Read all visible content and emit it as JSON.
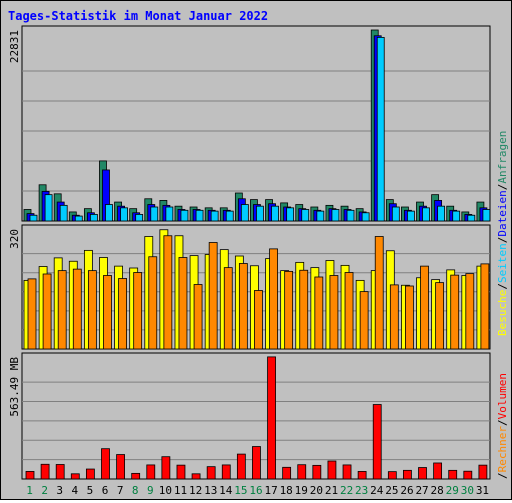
{
  "page_title": "Tages-Statistik im Monat Januar 2022",
  "colors": {
    "anfragen": "#228866",
    "dateien": "#0000ff",
    "seiten": "#00ccff",
    "besuche": "#ffff00",
    "rechner": "#ff8800",
    "volumen": "#ff0000",
    "weekday_label": "#000000",
    "weekend_label": "#008040"
  },
  "chart_data": [
    {
      "type": "bar",
      "panel": "top",
      "ytick_label": "22831",
      "ylim": [
        0,
        23200
      ],
      "grid": true,
      "categories": [
        "1",
        "2",
        "3",
        "4",
        "5",
        "6",
        "7",
        "8",
        "9",
        "10",
        "11",
        "12",
        "13",
        "14",
        "15",
        "16",
        "17",
        "18",
        "19",
        "20",
        "21",
        "22",
        "23",
        "24",
        "25",
        "26",
        "27",
        "28",
        "29",
        "30",
        "31"
      ],
      "weekend_days": [
        "1",
        "2",
        "8",
        "9",
        "15",
        "16",
        "22",
        "23",
        "29",
        "30"
      ],
      "series": [
        {
          "name": "Anfragen",
          "values": [
            1400,
            4400,
            3300,
            1100,
            1500,
            7300,
            2300,
            1500,
            2700,
            2500,
            1800,
            1700,
            1600,
            1600,
            3400,
            2600,
            2600,
            2200,
            2000,
            1700,
            1900,
            1800,
            1500,
            23200,
            2600,
            1700,
            2300,
            3200,
            1800,
            1100,
            2300
          ]
        },
        {
          "name": "Dateien",
          "values": [
            900,
            3600,
            2300,
            700,
            1000,
            6200,
            1800,
            1000,
            2000,
            1900,
            1400,
            1400,
            1300,
            1300,
            2700,
            2000,
            2100,
            1700,
            1500,
            1300,
            1500,
            1400,
            1100,
            22500,
            2100,
            1300,
            1800,
            2500,
            1300,
            800,
            1600
          ]
        },
        {
          "name": "Seiten",
          "values": [
            700,
            3200,
            1900,
            600,
            800,
            2000,
            1600,
            800,
            1700,
            1700,
            1300,
            1300,
            1200,
            1200,
            2000,
            1800,
            1800,
            1600,
            1400,
            1200,
            1400,
            1300,
            1000,
            22300,
            1700,
            1200,
            1600,
            1800,
            1200,
            700,
            1400
          ]
        }
      ]
    },
    {
      "type": "bar",
      "panel": "middle",
      "ytick_label": "320",
      "ylim": [
        0,
        320
      ],
      "grid": true,
      "categories": [
        "1",
        "2",
        "3",
        "4",
        "5",
        "6",
        "7",
        "8",
        "9",
        "10",
        "11",
        "12",
        "13",
        "14",
        "15",
        "16",
        "17",
        "18",
        "19",
        "20",
        "21",
        "22",
        "23",
        "24",
        "25",
        "26",
        "27",
        "28",
        "29",
        "30",
        "31"
      ],
      "series": [
        {
          "name": "Besuche",
          "values": [
            183,
            220,
            243,
            234,
            263,
            244,
            221,
            216,
            300,
            318,
            302,
            249,
            252,
            265,
            248,
            222,
            241,
            209,
            231,
            217,
            236,
            223,
            183,
            209,
            262,
            170,
            190,
            185,
            211,
            196,
            221
          ]
        },
        {
          "name": "Rechner",
          "values": [
            187,
            200,
            209,
            213,
            209,
            196,
            188,
            204,
            246,
            302,
            244,
            172,
            284,
            217,
            228,
            156,
            267,
            207,
            210,
            192,
            196,
            204,
            153,
            300,
            171,
            168,
            221,
            177,
            197,
            201,
            227
          ]
        }
      ]
    },
    {
      "type": "bar",
      "panel": "bottom",
      "ytick_label": "563.49 MB",
      "ylim": [
        0,
        563.49
      ],
      "grid": true,
      "categories": [
        "1",
        "2",
        "3",
        "4",
        "5",
        "6",
        "7",
        "8",
        "9",
        "10",
        "11",
        "12",
        "13",
        "14",
        "15",
        "16",
        "17",
        "18",
        "19",
        "20",
        "21",
        "22",
        "23",
        "24",
        "25",
        "26",
        "27",
        "28",
        "29",
        "30",
        "31"
      ],
      "series": [
        {
          "name": "Volumen",
          "values": [
            35,
            68,
            67,
            24,
            46,
            140,
            113,
            26,
            65,
            103,
            64,
            24,
            57,
            65,
            115,
            150,
            564,
            54,
            66,
            63,
            83,
            65,
            35,
            344,
            34,
            40,
            53,
            74,
            40,
            36,
            64
          ]
        }
      ]
    }
  ],
  "legend": {
    "right_top": [
      "Anfragen",
      "/",
      "Dateien",
      "/",
      "Seiten",
      "/",
      "Besuche"
    ],
    "right_bottom": [
      "Volumen",
      "/",
      "Rechner",
      "/"
    ]
  }
}
